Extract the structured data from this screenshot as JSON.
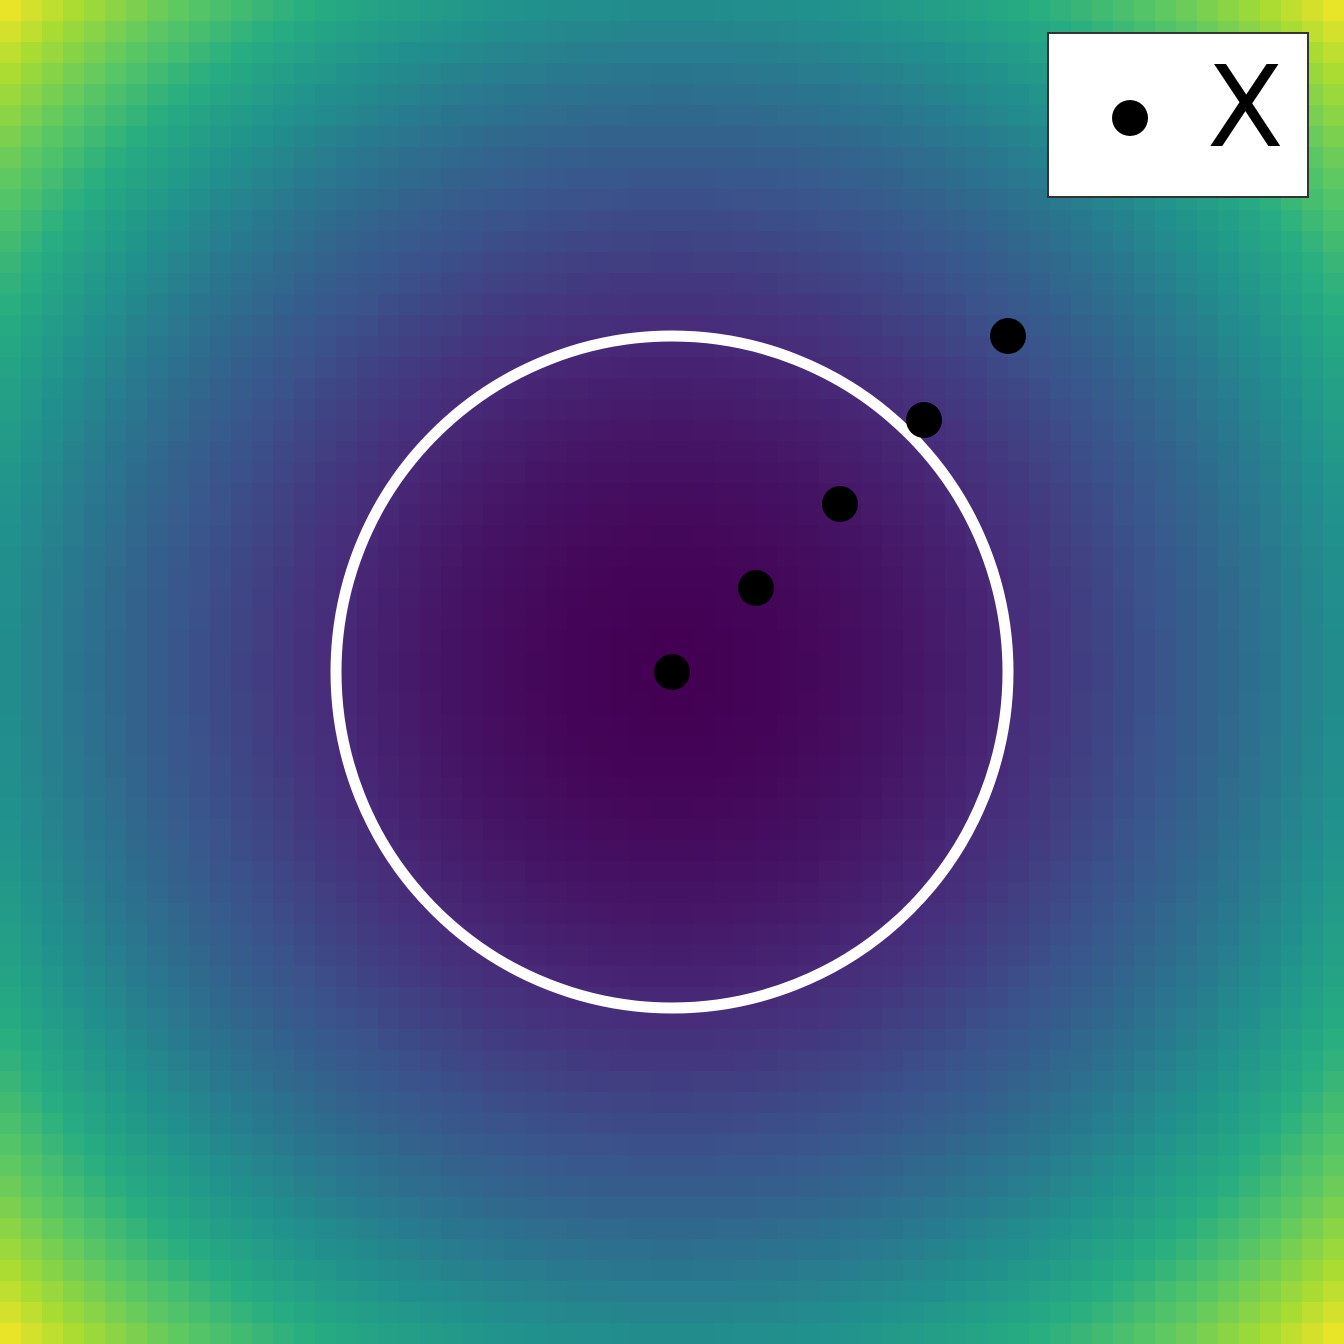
{
  "chart_data": {
    "type": "heatmap",
    "title": "",
    "xlabel": "",
    "ylabel": "",
    "colormap": "viridis",
    "xlim": [
      -2,
      2
    ],
    "ylim": [
      -2,
      2
    ],
    "grid": false,
    "field": "x^2 + y^2",
    "grid_cells": 64,
    "contour": {
      "level": 1,
      "color": "#ffffff"
    },
    "series": [
      {
        "name": "X",
        "marker": "circle",
        "color": "#000000",
        "x": [
          0.0,
          0.25,
          0.5,
          0.75,
          1.0
        ],
        "y": [
          0.0,
          0.25,
          0.5,
          0.75,
          1.0
        ]
      }
    ],
    "legend": {
      "placement": "top-right",
      "entries": [
        "X"
      ]
    }
  }
}
